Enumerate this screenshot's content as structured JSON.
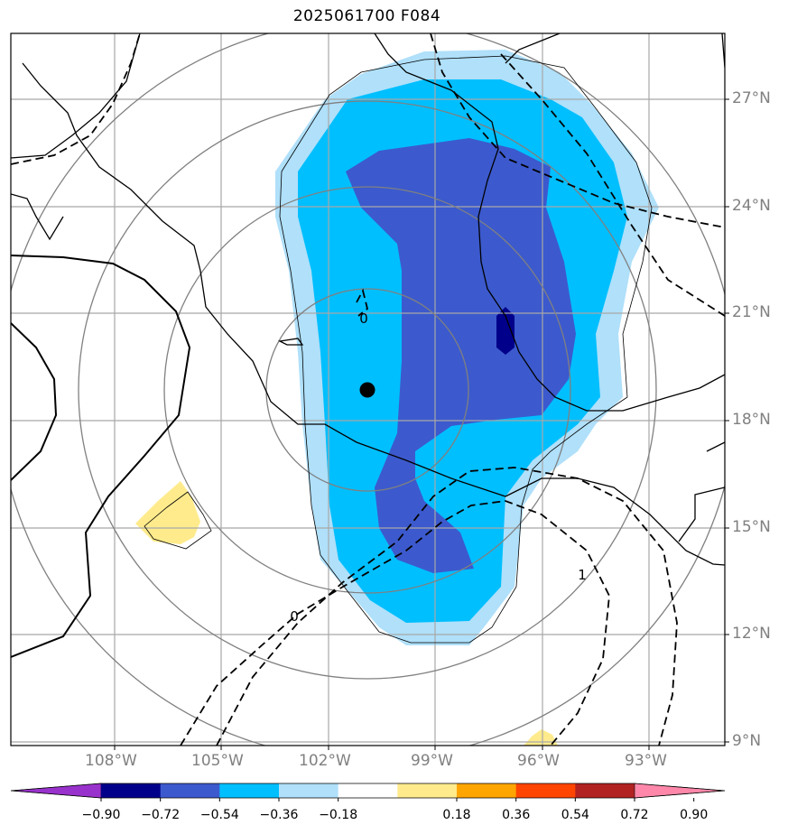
{
  "title": "2025061700 F084",
  "lat_labels": [
    "27°N",
    "24°N",
    "21°N",
    "18°N",
    "15°N",
    "12°N",
    "9°N"
  ],
  "lon_labels": [
    "108°W",
    "105°W",
    "102°W",
    "99°W",
    "96°W",
    "93°W"
  ],
  "contour_labels": [
    "0",
    "0",
    "1"
  ],
  "colorbar": {
    "ticks": [
      "−0.90",
      "−0.72",
      "−0.54",
      "−0.36",
      "−0.18",
      "0.18",
      "0.36",
      "0.54",
      "0.72",
      "0.90"
    ],
    "colors": [
      "#9932cc",
      "#00008b",
      "#3c5acd",
      "#00bfff",
      "#b0e0fa",
      "#ffffff",
      "#ffeb8c",
      "#ffa500",
      "#ff4500",
      "#b22222",
      "#ff88aa"
    ]
  },
  "fill_colors": {
    "light_blue": "#b0e0fa",
    "cyan": "#00bfff",
    "medium_blue": "#3c5acd",
    "dark_blue": "#00008b",
    "yellow": "#ffeb8c"
  }
}
